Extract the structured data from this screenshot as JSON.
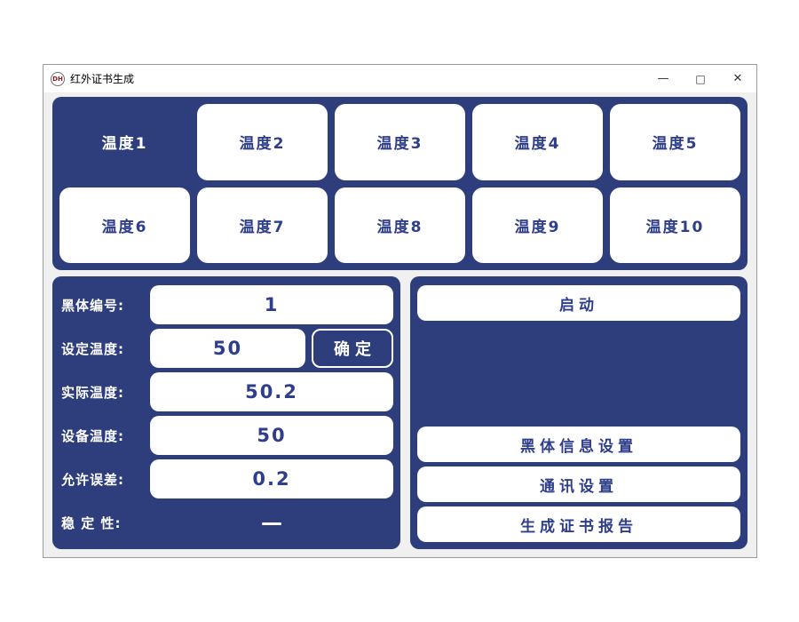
{
  "window": {
    "title": "红外证书生成",
    "icon_text": "DH",
    "controls": {
      "minimize": "—",
      "maximize": "□",
      "close": "✕"
    }
  },
  "colors": {
    "panel_navy": "#2e3e7d",
    "text_navy": "#2e3e8a",
    "client_bg": "#f0f0f0"
  },
  "temp_buttons": [
    {
      "label": "温度1",
      "selected": true
    },
    {
      "label": "温度2",
      "selected": false
    },
    {
      "label": "温度3",
      "selected": false
    },
    {
      "label": "温度4",
      "selected": false
    },
    {
      "label": "温度5",
      "selected": false
    },
    {
      "label": "温度6",
      "selected": false
    },
    {
      "label": "温度7",
      "selected": false
    },
    {
      "label": "温度8",
      "selected": false
    },
    {
      "label": "温度9",
      "selected": false
    },
    {
      "label": "温度10",
      "selected": false
    }
  ],
  "left_panel": {
    "rows": [
      {
        "label": "黑体编号:",
        "value": "1",
        "type": "field"
      },
      {
        "label": "设定温度:",
        "value": "50",
        "type": "field_with_button",
        "button": "确定"
      },
      {
        "label": "实际温度:",
        "value": "50.2",
        "type": "field"
      },
      {
        "label": "设备温度:",
        "value": "50",
        "type": "field"
      },
      {
        "label": "允许误差:",
        "value": "0.2",
        "type": "field"
      },
      {
        "label": "稳 定 性:",
        "value": "—",
        "type": "text"
      }
    ]
  },
  "right_panel": {
    "start_button": "启动",
    "buttons": [
      "黑体信息设置",
      "通讯设置",
      "生成证书报告"
    ]
  }
}
